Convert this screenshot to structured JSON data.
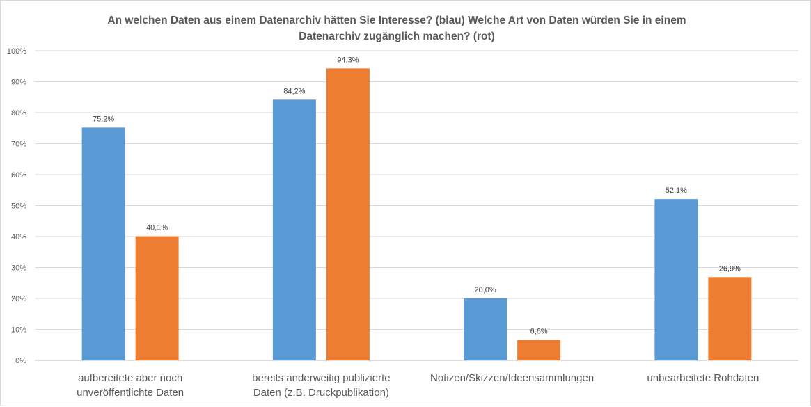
{
  "chart_data": {
    "type": "bar",
    "title_lines": [
      "An welchen Daten aus einem Datenarchiv hätten Sie Interesse? (blau) Welche Art von Daten würden Sie in einem",
      "Datenarchiv zugänglich machen? (rot)"
    ],
    "categories": [
      [
        "aufbereitete aber noch",
        "unveröffentlichte Daten"
      ],
      [
        "bereits anderweitig publizierte",
        "Daten (z.B. Druckpublikation)"
      ],
      [
        "Notizen/Skizzen/Ideensammlungen"
      ],
      [
        "unbearbeitete Rohdaten"
      ]
    ],
    "series": [
      {
        "color": "#5b9bd5",
        "values": [
          75.2,
          84.2,
          20.0,
          52.1
        ],
        "labels": [
          "75,2%",
          "84,2%",
          "20,0%",
          "52,1%"
        ]
      },
      {
        "color": "#ed7d31",
        "values": [
          40.1,
          94.3,
          6.6,
          26.9
        ],
        "labels": [
          "40,1%",
          "94,3%",
          "6,6%",
          "26,9%"
        ]
      }
    ],
    "ylim": [
      0,
      100
    ],
    "yticks": [
      "0%",
      "10%",
      "20%",
      "30%",
      "40%",
      "50%",
      "60%",
      "70%",
      "80%",
      "90%",
      "100%"
    ],
    "grid": true,
    "legend": "none"
  }
}
